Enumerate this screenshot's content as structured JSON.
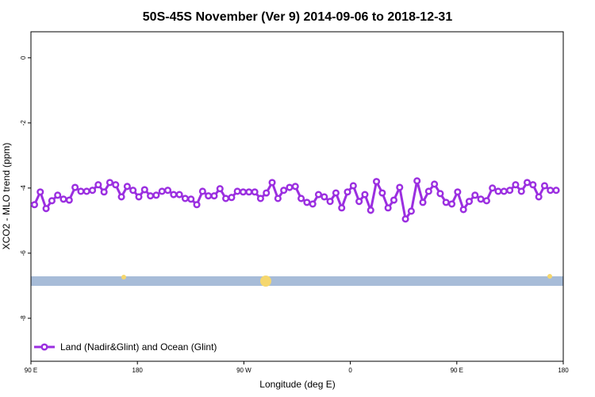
{
  "chart_data": {
    "type": "line",
    "title": "50S-45S November (Ver 9)   2014-09-06 to 2018-12-31",
    "x_label": "Longitude (deg E)",
    "y_label": "XCO2 - MLO trend (ppm)",
    "xlim": [
      90,
      540
    ],
    "xticks": [
      {
        "value": 90,
        "label": "90 E"
      },
      180,
      {
        "value": 270,
        "label": "90 W"
      },
      {
        "value": 360,
        "label": "0"
      },
      {
        "value": 450,
        "label": "90 E"
      },
      {
        "value": 540,
        "label": "180"
      }
    ],
    "ylim": [
      -9.32,
      0.8
    ],
    "yticks": [
      0,
      -2,
      -4,
      -6,
      -8
    ],
    "grid": false,
    "legend": "bottom-left",
    "x": [
      93,
      97.9,
      102.8,
      107.7,
      112.6,
      117.5,
      122.4,
      127.3,
      132.2,
      137.1,
      142,
      146.9,
      151.8,
      156.7,
      161.6,
      166.5,
      171.4,
      176.3,
      181.2,
      186.1,
      191,
      195.9,
      200.8,
      205.7,
      210.6,
      215.5,
      220.4,
      225.3,
      230.2,
      235.1,
      240,
      244.9,
      249.8,
      254.7,
      259.6,
      264.5,
      269.4,
      274.3,
      279.2,
      284.1,
      289,
      293.9,
      298.8,
      303.7,
      308.6,
      313.5,
      318.4,
      323.3,
      328.2,
      333.1,
      338,
      342.9,
      347.8,
      352.7,
      357.6,
      362.5,
      367.4,
      372.3,
      377.2,
      382.1,
      387,
      391.9,
      396.8,
      401.7,
      406.6,
      411.5,
      416.4,
      421.3,
      426.2,
      431.1,
      436,
      440.9,
      445.8,
      450.7,
      455.6,
      460.5,
      465.4,
      470.3,
      475.2,
      480.1,
      485,
      489.9,
      494.8,
      499.7,
      504.6,
      509.5,
      514.4,
      519.3,
      524.2,
      529.1,
      534
    ],
    "series": [
      {
        "name": "Land (Nadir&Glint) and Ocean (Glint)",
        "color": "#9b2fe0",
        "values": [
          -4.51,
          -4.12,
          -4.63,
          -4.39,
          -4.22,
          -4.34,
          -4.37,
          -3.98,
          -4.1,
          -4.1,
          -4.07,
          -3.9,
          -4.12,
          -3.83,
          -3.9,
          -4.27,
          -3.95,
          -4.07,
          -4.27,
          -4.05,
          -4.24,
          -4.22,
          -4.1,
          -4.07,
          -4.2,
          -4.2,
          -4.32,
          -4.34,
          -4.51,
          -4.1,
          -4.24,
          -4.24,
          -4.02,
          -4.32,
          -4.29,
          -4.1,
          -4.12,
          -4.12,
          -4.12,
          -4.32,
          -4.15,
          -3.83,
          -4.32,
          -4.07,
          -3.98,
          -3.95,
          -4.32,
          -4.44,
          -4.49,
          -4.2,
          -4.27,
          -4.41,
          -4.15,
          -4.61,
          -4.12,
          -3.93,
          -4.41,
          -4.2,
          -4.68,
          -3.8,
          -4.15,
          -4.61,
          -4.37,
          -3.98,
          -4.95,
          -4.71,
          -3.78,
          -4.44,
          -4.1,
          -3.88,
          -4.17,
          -4.44,
          -4.49,
          -4.12,
          -4.66,
          -4.41,
          -4.22,
          -4.34,
          -4.39,
          -4.0,
          -4.1,
          -4.1,
          -4.07,
          -3.9,
          -4.1,
          -3.83,
          -3.9,
          -4.27,
          -3.93,
          -4.07,
          -4.07
        ]
      }
    ]
  }
}
